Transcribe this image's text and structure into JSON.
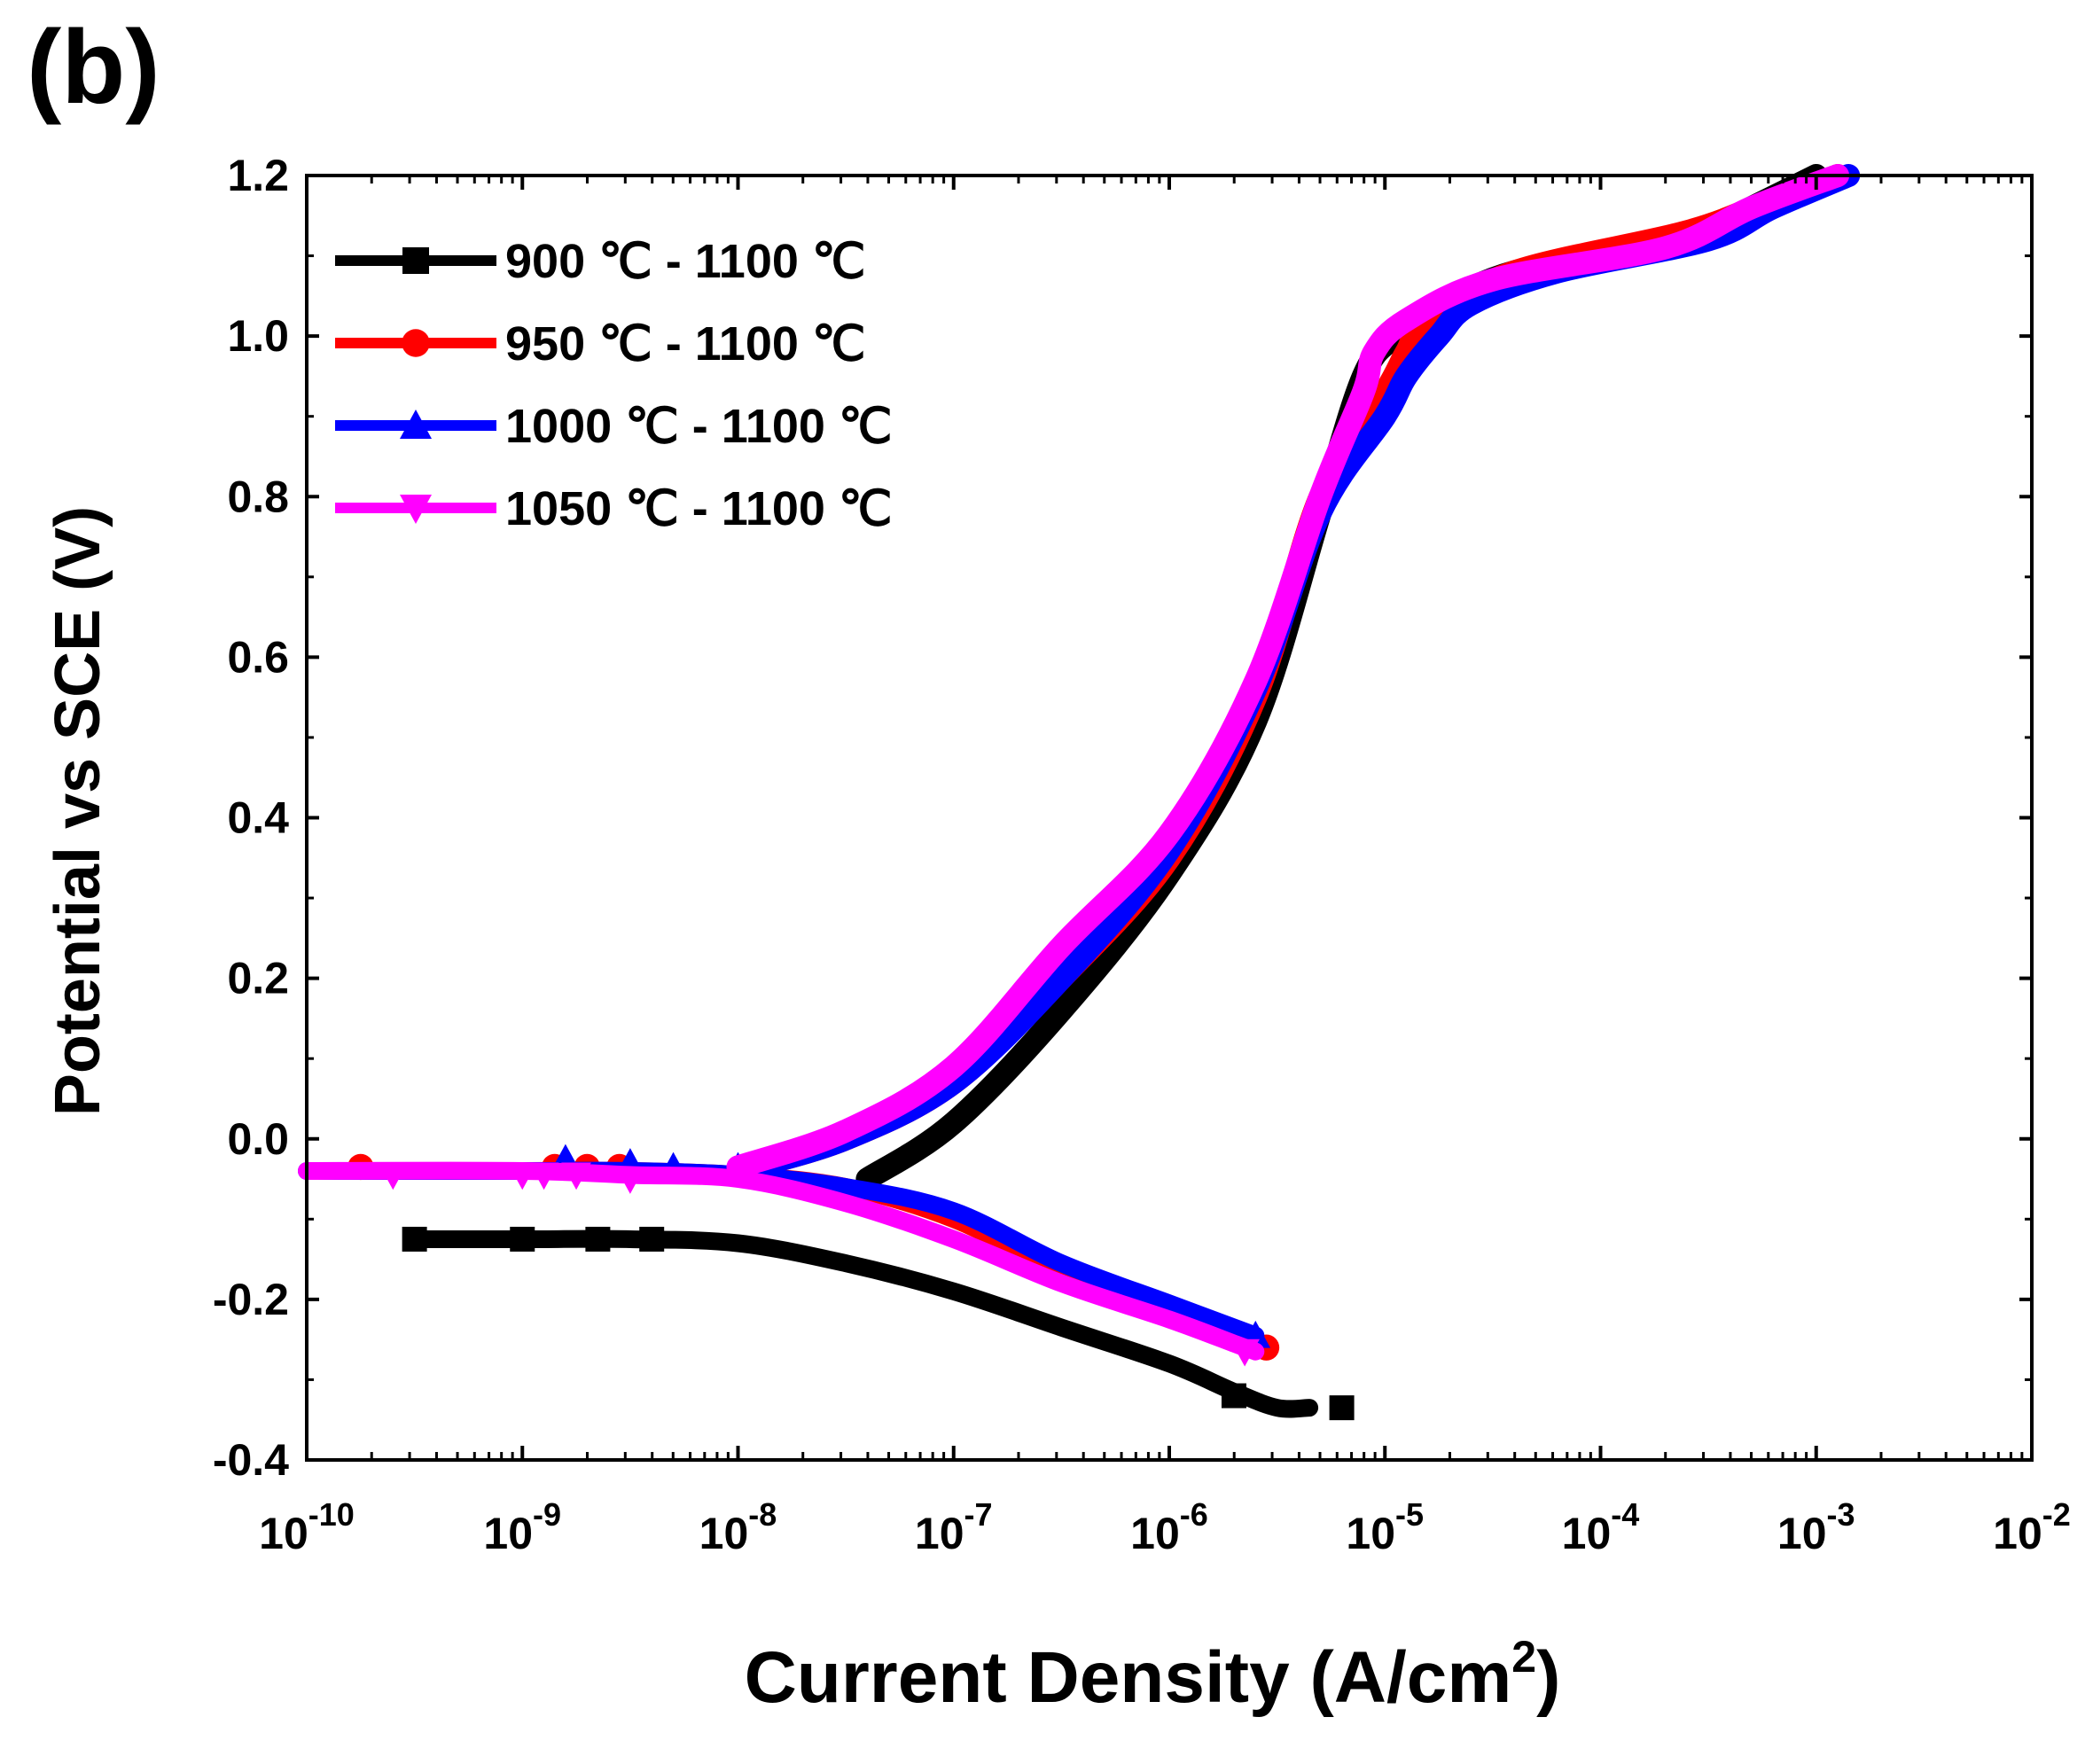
{
  "panel_label": "(b)",
  "chart_data": {
    "type": "line",
    "title": "",
    "xlabel": "Current Density (A/cm",
    "xlabel_sup": "2",
    "xlabel_close": ")",
    "ylabel": "Potential vs SCE (V)",
    "xscale": "log",
    "xlim_exp": [
      -10,
      -2
    ],
    "ylim": [
      -0.4,
      1.2
    ],
    "x_ticks": [
      {
        "base": "10",
        "exp": "-10",
        "e": -10
      },
      {
        "base": "10",
        "exp": "-9",
        "e": -9
      },
      {
        "base": "10",
        "exp": "-8",
        "e": -8
      },
      {
        "base": "10",
        "exp": "-7",
        "e": -7
      },
      {
        "base": "10",
        "exp": "-6",
        "e": -6
      },
      {
        "base": "10",
        "exp": "-5",
        "e": -5
      },
      {
        "base": "10",
        "exp": "-4",
        "e": -4
      },
      {
        "base": "10",
        "exp": "-3",
        "e": -3
      },
      {
        "base": "10",
        "exp": "-2",
        "e": -2
      }
    ],
    "y_ticks": [
      {
        "label": "1.2",
        "v": 1.2
      },
      {
        "label": "1.0",
        "v": 1.0
      },
      {
        "label": "0.8",
        "v": 0.8
      },
      {
        "label": "0.6",
        "v": 0.6
      },
      {
        "label": "0.4",
        "v": 0.4
      },
      {
        "label": "0.2",
        "v": 0.2
      },
      {
        "label": "0.0",
        "v": 0.0
      },
      {
        "label": "-0.2",
        "v": -0.2
      },
      {
        "label": "-0.4",
        "v": -0.4
      }
    ],
    "legend_position": "top-left",
    "series": [
      {
        "name": "900 ℃ - 1100 ℃",
        "color": "#000000",
        "marker": "square",
        "anodic": [
          [
            -7.4,
            -0.05
          ],
          [
            -7.0,
            0.02
          ],
          [
            -6.5,
            0.16
          ],
          [
            -6.0,
            0.33
          ],
          [
            -5.6,
            0.52
          ],
          [
            -5.3,
            0.78
          ],
          [
            -5.1,
            0.95
          ],
          [
            -4.95,
            1.0
          ],
          [
            -4.8,
            1.03
          ],
          [
            -4.4,
            1.08
          ],
          [
            -3.6,
            1.12
          ],
          [
            -3.3,
            1.16
          ],
          [
            -3.0,
            1.2
          ]
        ],
        "cathodic": [
          [
            -9.5,
            -0.125
          ],
          [
            -9.0,
            -0.125
          ],
          [
            -8.5,
            -0.125
          ],
          [
            -8.0,
            -0.13
          ],
          [
            -7.5,
            -0.155
          ],
          [
            -7.0,
            -0.19
          ],
          [
            -6.5,
            -0.235
          ],
          [
            -6.0,
            -0.28
          ],
          [
            -5.7,
            -0.315
          ],
          [
            -5.5,
            -0.335
          ],
          [
            -5.35,
            -0.335
          ]
        ],
        "markers": [
          [
            -9.5,
            -0.125
          ],
          [
            -9.0,
            -0.125
          ],
          [
            -8.65,
            -0.125
          ],
          [
            -8.4,
            -0.125
          ],
          [
            -5.7,
            -0.32
          ],
          [
            -5.2,
            -0.335
          ]
        ]
      },
      {
        "name": "950 ℃ - 1100 ℃",
        "color": "#ff0000",
        "marker": "circle",
        "anodic": [
          [
            -8.0,
            -0.04
          ],
          [
            -7.5,
            0.0
          ],
          [
            -7.0,
            0.07
          ],
          [
            -6.5,
            0.2
          ],
          [
            -6.0,
            0.35
          ],
          [
            -5.6,
            0.55
          ],
          [
            -5.3,
            0.8
          ],
          [
            -5.0,
            0.93
          ],
          [
            -4.9,
            0.98
          ],
          [
            -4.8,
            1.02
          ],
          [
            -4.4,
            1.08
          ],
          [
            -3.6,
            1.13
          ],
          [
            -3.2,
            1.17
          ],
          [
            -2.9,
            1.2
          ]
        ],
        "cathodic": [
          [
            -9.75,
            -0.04
          ],
          [
            -9.0,
            -0.04
          ],
          [
            -8.5,
            -0.04
          ],
          [
            -8.0,
            -0.045
          ],
          [
            -7.5,
            -0.06
          ],
          [
            -7.0,
            -0.1
          ],
          [
            -6.5,
            -0.165
          ],
          [
            -6.0,
            -0.215
          ],
          [
            -5.65,
            -0.25
          ],
          [
            -5.55,
            -0.26
          ]
        ],
        "markers": [
          [
            -9.75,
            -0.035
          ],
          [
            -8.85,
            -0.035
          ],
          [
            -8.7,
            -0.035
          ],
          [
            -8.55,
            -0.035
          ],
          [
            -5.55,
            -0.26
          ]
        ]
      },
      {
        "name": "1000 ℃ - 1100 ℃",
        "color": "#0000ff",
        "marker": "triangle-up",
        "anodic": [
          [
            -8.0,
            -0.04
          ],
          [
            -7.5,
            0.0
          ],
          [
            -7.0,
            0.07
          ],
          [
            -6.5,
            0.2
          ],
          [
            -6.0,
            0.36
          ],
          [
            -5.6,
            0.56
          ],
          [
            -5.3,
            0.78
          ],
          [
            -5.0,
            0.9
          ],
          [
            -4.9,
            0.95
          ],
          [
            -4.75,
            1.0
          ],
          [
            -4.6,
            1.04
          ],
          [
            -4.2,
            1.08
          ],
          [
            -3.5,
            1.12
          ],
          [
            -3.2,
            1.16
          ],
          [
            -2.85,
            1.2
          ]
        ],
        "cathodic": [
          [
            -10.0,
            -0.04
          ],
          [
            -9.0,
            -0.04
          ],
          [
            -8.5,
            -0.04
          ],
          [
            -8.0,
            -0.045
          ],
          [
            -7.5,
            -0.06
          ],
          [
            -7.0,
            -0.09
          ],
          [
            -6.5,
            -0.155
          ],
          [
            -6.0,
            -0.205
          ],
          [
            -5.6,
            -0.245
          ]
        ],
        "markers": [
          [
            -8.8,
            -0.025
          ],
          [
            -8.5,
            -0.03
          ],
          [
            -8.3,
            -0.035
          ],
          [
            -8.0,
            -0.035
          ],
          [
            -5.6,
            -0.245
          ]
        ]
      },
      {
        "name": "1050 ℃ - 1100 ℃",
        "color": "#ff00ff",
        "marker": "triangle-down",
        "anodic": [
          [
            -8.0,
            -0.035
          ],
          [
            -7.5,
            0.01
          ],
          [
            -7.0,
            0.09
          ],
          [
            -6.5,
            0.24
          ],
          [
            -6.0,
            0.38
          ],
          [
            -5.6,
            0.57
          ],
          [
            -5.3,
            0.8
          ],
          [
            -5.1,
            0.93
          ],
          [
            -5.05,
            0.98
          ],
          [
            -4.9,
            1.02
          ],
          [
            -4.5,
            1.07
          ],
          [
            -3.7,
            1.11
          ],
          [
            -3.3,
            1.16
          ],
          [
            -2.9,
            1.2
          ]
        ],
        "cathodic": [
          [
            -10.0,
            -0.04
          ],
          [
            -9.0,
            -0.04
          ],
          [
            -8.5,
            -0.045
          ],
          [
            -8.0,
            -0.05
          ],
          [
            -7.5,
            -0.08
          ],
          [
            -7.0,
            -0.125
          ],
          [
            -6.5,
            -0.18
          ],
          [
            -6.0,
            -0.225
          ],
          [
            -5.7,
            -0.255
          ],
          [
            -5.6,
            -0.265
          ]
        ],
        "markers": [
          [
            -9.6,
            -0.045
          ],
          [
            -9.0,
            -0.045
          ],
          [
            -8.9,
            -0.045
          ],
          [
            -8.75,
            -0.045
          ],
          [
            -8.5,
            -0.05
          ],
          [
            -5.65,
            -0.265
          ]
        ]
      }
    ]
  }
}
